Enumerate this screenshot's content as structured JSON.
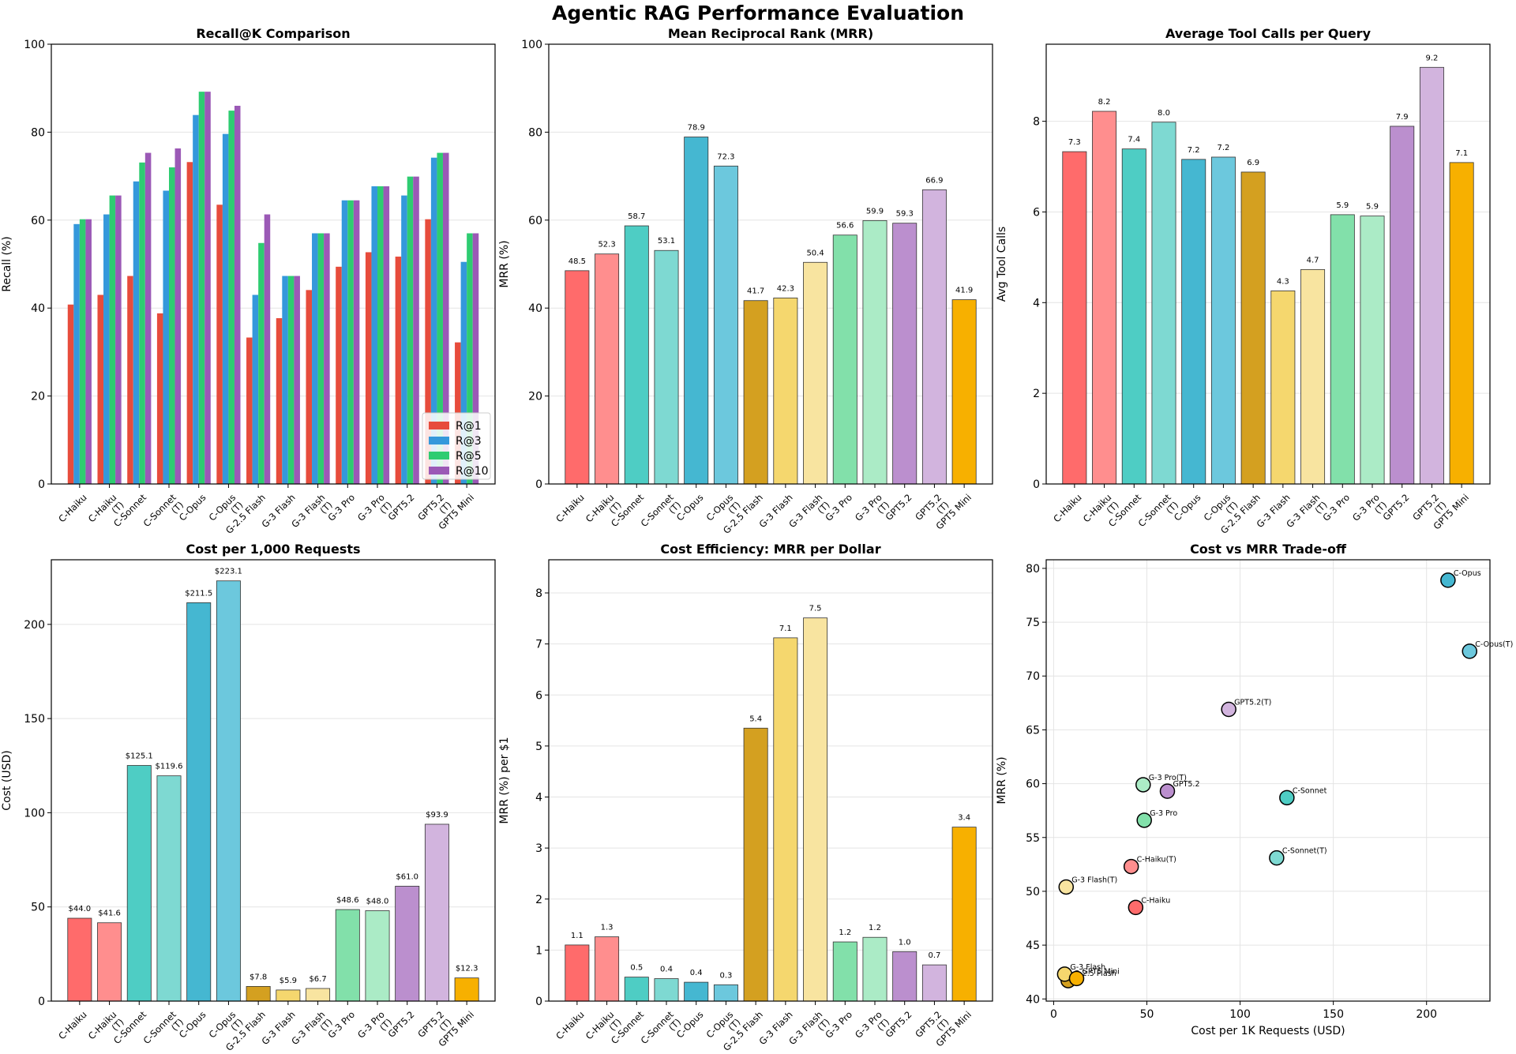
{
  "figure_title": "Agentic RAG Performance Evaluation",
  "models": [
    "C-Haiku",
    "C-Haiku\n(T)",
    "C-Sonnet",
    "C-Sonnet\n(T)",
    "C-Opus",
    "C-Opus\n(T)",
    "G-2.5 Flash",
    "G-3 Flash",
    "G-3 Flash\n(T)",
    "G-3 Pro",
    "G-3 Pro\n(T)",
    "GPT5.2",
    "GPT5.2\n(T)",
    "GPT5 Mini"
  ],
  "colors": {
    "bars": [
      "#FF6B6B",
      "#FF8E8E",
      "#4ECDC4",
      "#7ED9D2",
      "#45B7D1",
      "#6CC8DD",
      "#D4A020",
      "#F5D76E",
      "#F8E4A0",
      "#82E0AA",
      "#ABEBC6",
      "#BB8FCE",
      "#D2B4DE",
      "#F7B000"
    ],
    "recall_series": [
      "#E74C3C",
      "#3498DB",
      "#2ECC71",
      "#9B59B6"
    ]
  },
  "chart_data": [
    {
      "id": "recall",
      "type": "bar",
      "title": "Recall@K Comparison",
      "xlabel": "",
      "ylabel": "Recall (%)",
      "ylim": [
        0,
        100
      ],
      "yticks": [
        0,
        20,
        40,
        60,
        80,
        100
      ],
      "legend": "lower-right",
      "series": [
        {
          "name": "R@1",
          "values": [
            40.8,
            43.0,
            47.3,
            38.8,
            73.2,
            63.5,
            33.3,
            37.7,
            44.1,
            49.4,
            52.7,
            51.7,
            60.2,
            32.2
          ]
        },
        {
          "name": "R@3",
          "values": [
            59.1,
            61.3,
            68.8,
            66.7,
            83.9,
            79.6,
            43.0,
            47.3,
            57.0,
            64.5,
            67.7,
            65.6,
            74.2,
            50.5
          ]
        },
        {
          "name": "R@5",
          "values": [
            60.2,
            65.6,
            73.1,
            72.0,
            89.2,
            84.9,
            54.8,
            47.3,
            57.0,
            64.5,
            67.7,
            69.9,
            75.3,
            57.0
          ]
        },
        {
          "name": "R@10",
          "values": [
            60.2,
            65.6,
            75.3,
            76.3,
            89.2,
            86.0,
            61.3,
            47.3,
            57.0,
            64.5,
            67.7,
            69.9,
            75.3,
            57.0
          ]
        }
      ]
    },
    {
      "id": "mrr",
      "type": "bar",
      "title": "Mean Reciprocal Rank (MRR)",
      "xlabel": "",
      "ylabel": "MRR (%)",
      "ylim": [
        0,
        100
      ],
      "yticks": [
        0,
        20,
        40,
        60,
        80,
        100
      ],
      "values": [
        48.5,
        52.3,
        58.7,
        53.1,
        78.9,
        72.3,
        41.7,
        42.3,
        50.4,
        56.6,
        59.9,
        59.3,
        66.9,
        41.9
      ],
      "data_labels": [
        "48.5",
        "52.3",
        "58.7",
        "53.1",
        "78.9",
        "72.3",
        "41.7",
        "42.3",
        "50.4",
        "56.6",
        "59.9",
        "59.3",
        "66.9",
        "41.9"
      ]
    },
    {
      "id": "toolcalls",
      "type": "bar",
      "title": "Average Tool Calls per Query",
      "xlabel": "",
      "ylabel": "Avg Tool Calls",
      "ylim": [
        0,
        9.7
      ],
      "yticks": [
        0,
        2,
        4,
        6,
        8
      ],
      "values": [
        7.33,
        8.22,
        7.39,
        7.98,
        7.16,
        7.21,
        6.88,
        4.26,
        4.73,
        5.94,
        5.91,
        7.89,
        9.19,
        7.09
      ],
      "data_labels": [
        "7.3",
        "8.2",
        "7.4",
        "8.0",
        "7.2",
        "7.2",
        "6.9",
        "4.3",
        "4.7",
        "5.9",
        "5.9",
        "7.9",
        "9.2",
        "7.1"
      ]
    },
    {
      "id": "cost",
      "type": "bar",
      "title": "Cost per 1,000 Requests",
      "xlabel": "",
      "ylabel": "Cost (USD)",
      "ylim": [
        0,
        234.3
      ],
      "yticks": [
        0,
        50,
        100,
        150,
        200
      ],
      "values": [
        44.0,
        41.6,
        125.1,
        119.6,
        211.5,
        223.1,
        7.8,
        5.9,
        6.7,
        48.6,
        48.0,
        61.0,
        93.9,
        12.3
      ],
      "data_labels": [
        "$44.0",
        "$41.6",
        "$125.1",
        "$119.6",
        "$211.5",
        "$223.1",
        "$7.8",
        "$5.9",
        "$6.7",
        "$48.6",
        "$48.0",
        "$61.0",
        "$93.9",
        "$12.3"
      ]
    },
    {
      "id": "efficiency",
      "type": "bar",
      "title": "Cost Efficiency: MRR per Dollar",
      "xlabel": "",
      "ylabel": "MRR (%) per $1",
      "ylim": [
        0,
        8.65
      ],
      "yticks": [
        0,
        1,
        2,
        3,
        4,
        5,
        6,
        7,
        8
      ],
      "values": [
        1.1,
        1.26,
        0.47,
        0.44,
        0.37,
        0.32,
        5.35,
        7.12,
        7.51,
        1.16,
        1.25,
        0.97,
        0.71,
        3.41
      ],
      "data_labels": [
        "1.1",
        "1.3",
        "0.5",
        "0.4",
        "0.4",
        "0.3",
        "5.4",
        "7.1",
        "7.5",
        "1.2",
        "1.2",
        "1.0",
        "0.7",
        "3.4"
      ]
    },
    {
      "id": "tradeoff",
      "type": "scatter",
      "title": "Cost vs MRR Trade-off",
      "xlabel": "Cost per 1K Requests (USD)",
      "ylabel": "MRR (%)",
      "xlim": [
        -4,
        234
      ],
      "ylim": [
        39.8,
        80.8
      ],
      "xticks": [
        0,
        50,
        100,
        150,
        200
      ],
      "yticks": [
        40,
        45,
        50,
        55,
        60,
        65,
        70,
        75,
        80
      ],
      "points": [
        {
          "label": "C-Haiku",
          "x": 44.0,
          "y": 48.5
        },
        {
          "label": "C-Haiku(T)",
          "x": 41.6,
          "y": 52.3
        },
        {
          "label": "C-Sonnet",
          "x": 125.1,
          "y": 58.7
        },
        {
          "label": "C-Sonnet(T)",
          "x": 119.6,
          "y": 53.1
        },
        {
          "label": "C-Opus",
          "x": 211.5,
          "y": 78.9
        },
        {
          "label": "C-Opus(T)",
          "x": 223.1,
          "y": 72.3
        },
        {
          "label": "G-2.5 Flash",
          "x": 7.8,
          "y": 41.7
        },
        {
          "label": "G-3 Flash",
          "x": 5.9,
          "y": 42.3
        },
        {
          "label": "G-3 Flash(T)",
          "x": 6.7,
          "y": 50.4
        },
        {
          "label": "G-3 Pro",
          "x": 48.6,
          "y": 56.6
        },
        {
          "label": "G-3 Pro(T)",
          "x": 48.0,
          "y": 59.9
        },
        {
          "label": "GPT5.2",
          "x": 61.0,
          "y": 59.3
        },
        {
          "label": "GPT5.2(T)",
          "x": 93.9,
          "y": 66.9
        },
        {
          "label": "GPT5 Mini",
          "x": 12.3,
          "y": 41.9
        }
      ]
    }
  ]
}
